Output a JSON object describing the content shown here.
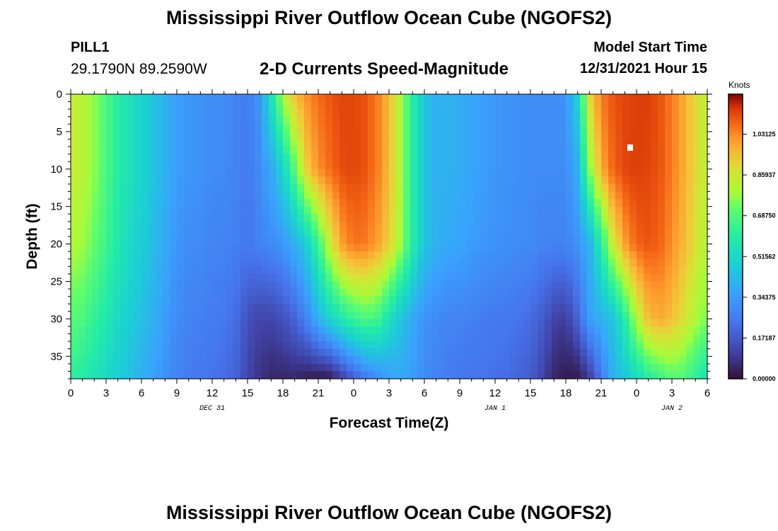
{
  "header": {
    "title": "Mississippi River Outflow Ocean Cube (NGOFS2)",
    "station": "PILL1",
    "coordinates": "29.1790N  89.2590W",
    "subtitle": "2-D Currents Speed-Magnitude",
    "start_label": "Model Start Time",
    "start_value": "12/31/2021 Hour 15"
  },
  "footer": {
    "title": "Mississippi River Outflow Ocean Cube (NGOFS2)"
  },
  "chart_data": {
    "type": "heatmap",
    "xlabel": "Forecast Time(Z)",
    "ylabel": "Depth (ft)",
    "x_range_hours": [
      0,
      54
    ],
    "y_range_ft": [
      0,
      38
    ],
    "x_tick_labels": [
      "0",
      "3",
      "6",
      "9",
      "12",
      "15",
      "18",
      "21",
      "0",
      "3",
      "6",
      "9",
      "12",
      "15",
      "18",
      "21",
      "0",
      "3",
      "6"
    ],
    "y_tick_labels": [
      "0",
      "5",
      "10",
      "15",
      "20",
      "25",
      "30",
      "35"
    ],
    "date_labels": [
      {
        "label": "DEC 31",
        "hour": 12
      },
      {
        "label": "JAN 1",
        "hour": 36
      },
      {
        "label": "JAN 2",
        "hour": 51
      }
    ],
    "colorbar": {
      "unit": "Knots",
      "min": 0.0,
      "max": 1.2,
      "tick_labels": [
        "1.03125",
        "0.85937",
        "0.68750",
        "0.51562",
        "0.34375",
        "0.17187",
        "0.00000"
      ],
      "tick_values": [
        1.03125,
        0.859375,
        0.6875,
        0.515625,
        0.34375,
        0.171875,
        0.0
      ]
    },
    "speed_profile_knots": {
      "depth_ft": [
        0,
        10,
        20,
        30,
        38
      ],
      "hours": [
        0,
        1,
        2,
        3,
        4,
        5,
        6,
        7,
        8,
        9,
        10,
        11,
        12,
        13,
        14,
        15,
        16,
        17,
        18,
        19,
        20,
        21,
        22,
        23,
        24,
        25,
        26,
        27,
        28,
        29,
        30,
        31,
        32,
        33,
        34,
        35,
        36,
        37,
        38,
        39,
        40,
        41,
        42,
        43,
        44,
        45,
        46,
        47,
        48,
        49,
        50,
        51,
        52,
        53,
        54
      ],
      "values": [
        [
          0.85,
          0.82,
          0.76,
          0.68,
          0.6,
          0.55,
          0.5,
          0.45,
          0.4,
          0.35,
          0.33,
          0.32,
          0.3,
          0.3,
          0.28,
          0.26,
          0.33,
          0.55,
          0.8,
          0.95,
          1.02,
          1.07,
          1.1,
          1.12,
          1.12,
          1.1,
          1.05,
          0.95,
          0.8,
          0.6,
          0.45,
          0.4,
          0.4,
          0.39,
          0.37,
          0.35,
          0.33,
          0.32,
          0.31,
          0.3,
          0.3,
          0.3,
          0.32,
          0.5,
          0.9,
          1.05,
          1.1,
          1.12,
          1.13,
          1.13,
          1.1,
          1.05,
          0.98,
          0.9,
          0.82
        ],
        [
          0.85,
          0.82,
          0.76,
          0.68,
          0.6,
          0.55,
          0.5,
          0.45,
          0.4,
          0.35,
          0.33,
          0.32,
          0.3,
          0.3,
          0.28,
          0.25,
          0.3,
          0.38,
          0.5,
          0.7,
          0.92,
          1.02,
          1.07,
          1.11,
          1.12,
          1.1,
          1.05,
          0.95,
          0.8,
          0.6,
          0.45,
          0.4,
          0.4,
          0.39,
          0.37,
          0.35,
          0.33,
          0.32,
          0.31,
          0.3,
          0.3,
          0.3,
          0.3,
          0.4,
          0.75,
          0.98,
          1.08,
          1.12,
          1.13,
          1.12,
          1.1,
          1.05,
          0.98,
          0.9,
          0.82
        ],
        [
          0.8,
          0.78,
          0.72,
          0.65,
          0.58,
          0.52,
          0.48,
          0.43,
          0.38,
          0.33,
          0.3,
          0.3,
          0.28,
          0.28,
          0.27,
          0.25,
          0.28,
          0.3,
          0.33,
          0.4,
          0.48,
          0.65,
          0.85,
          1.0,
          1.06,
          1.05,
          1.0,
          0.92,
          0.78,
          0.6,
          0.45,
          0.4,
          0.38,
          0.37,
          0.35,
          0.33,
          0.32,
          0.31,
          0.3,
          0.3,
          0.28,
          0.28,
          0.28,
          0.32,
          0.4,
          0.6,
          0.85,
          1.0,
          1.08,
          1.1,
          1.08,
          1.02,
          0.96,
          0.88,
          0.8
        ],
        [
          0.7,
          0.68,
          0.63,
          0.58,
          0.52,
          0.48,
          0.44,
          0.4,
          0.35,
          0.3,
          0.28,
          0.27,
          0.26,
          0.25,
          0.22,
          0.15,
          0.12,
          0.12,
          0.15,
          0.2,
          0.28,
          0.4,
          0.5,
          0.58,
          0.64,
          0.68,
          0.66,
          0.55,
          0.45,
          0.38,
          0.32,
          0.3,
          0.28,
          0.28,
          0.27,
          0.26,
          0.25,
          0.25,
          0.24,
          0.22,
          0.18,
          0.12,
          0.1,
          0.2,
          0.35,
          0.4,
          0.45,
          0.6,
          0.8,
          0.95,
          0.98,
          0.95,
          0.88,
          0.8,
          0.74
        ],
        [
          0.62,
          0.6,
          0.56,
          0.52,
          0.48,
          0.44,
          0.4,
          0.36,
          0.32,
          0.28,
          0.26,
          0.25,
          0.24,
          0.22,
          0.2,
          0.12,
          0.08,
          0.05,
          0.05,
          0.05,
          0.03,
          0.02,
          0.02,
          0.1,
          0.18,
          0.25,
          0.3,
          0.35,
          0.38,
          0.35,
          0.3,
          0.28,
          0.26,
          0.25,
          0.24,
          0.24,
          0.23,
          0.22,
          0.2,
          0.18,
          0.12,
          0.05,
          0.02,
          0.02,
          0.1,
          0.25,
          0.4,
          0.45,
          0.52,
          0.6,
          0.65,
          0.7,
          0.68,
          0.62,
          0.55
        ]
      ]
    }
  }
}
